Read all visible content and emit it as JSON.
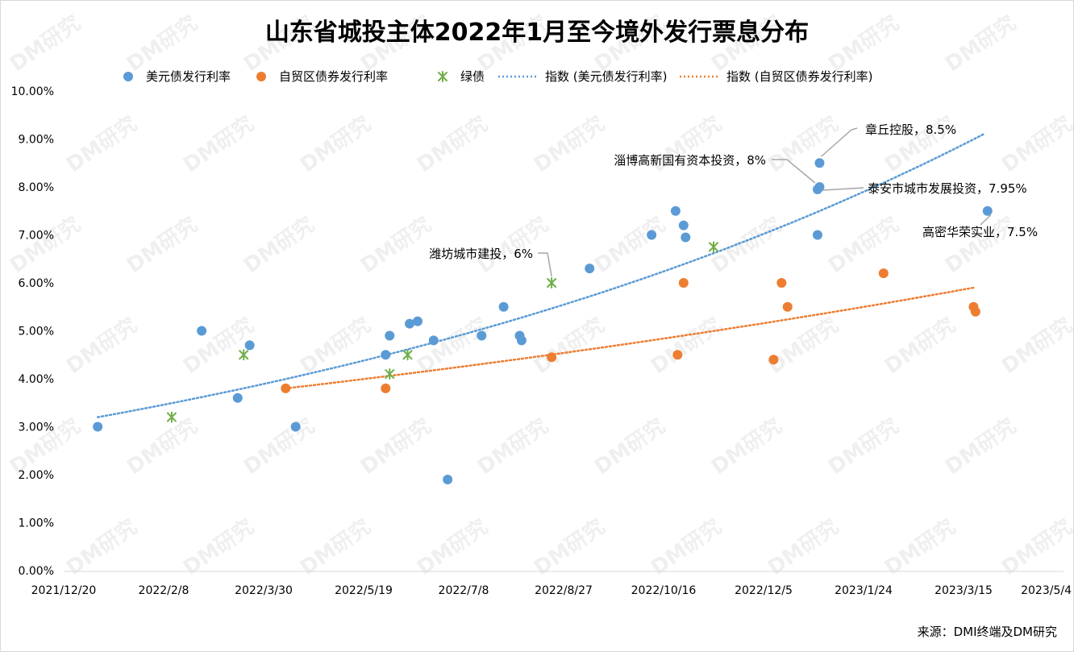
{
  "title": "山东省城投主体2022年1月至今境外发行票息分布",
  "source": "来源：DMI终端及DM研究",
  "watermark": "DM研究",
  "chart_data": {
    "type": "scatter",
    "x_axis": {
      "type": "date",
      "min": "2021-12-20",
      "max": "2023-05-04",
      "tick_labels": [
        "2021/12/20",
        "2022/2/8",
        "2022/3/30",
        "2022/5/19",
        "2022/7/8",
        "2022/8/27",
        "2022/10/16",
        "2022/12/5",
        "2023/1/24",
        "2023/3/15",
        "2023/5/4"
      ],
      "tick_dates": [
        "2021-12-20",
        "2022-02-08",
        "2022-03-30",
        "2022-05-19",
        "2022-07-08",
        "2022-08-27",
        "2022-10-16",
        "2022-12-05",
        "2023-01-24",
        "2023-03-15",
        "2023-05-04"
      ]
    },
    "y_axis": {
      "min": 0,
      "max": 0.1,
      "tick_labels": [
        "0.00%",
        "1.00%",
        "2.00%",
        "3.00%",
        "4.00%",
        "5.00%",
        "6.00%",
        "7.00%",
        "8.00%",
        "9.00%",
        "10.00%"
      ],
      "tick_values": [
        0,
        0.01,
        0.02,
        0.03,
        0.04,
        0.05,
        0.06,
        0.07,
        0.08,
        0.09,
        0.1
      ]
    },
    "legend": {
      "position": "top",
      "items": [
        {
          "label": "美元债发行利率",
          "marker": "circle",
          "color": "#5b9bd5"
        },
        {
          "label": "自贸区债券发行利率",
          "marker": "circle",
          "color": "#ed7d31"
        },
        {
          "label": "绿债",
          "marker": "asterisk",
          "color": "#70ad47"
        },
        {
          "label": "指数 (美元债发行利率)",
          "marker": "dotted-line",
          "color": "#5b9bd5"
        },
        {
          "label": "指数 (自贸区债券发行利率)",
          "marker": "dotted-line",
          "color": "#ed7d31"
        }
      ]
    },
    "series": [
      {
        "name": "美元债发行利率",
        "color": "#5b9bd5",
        "points": [
          {
            "x": "2022-01-06",
            "y": 0.03
          },
          {
            "x": "2022-02-27",
            "y": 0.05
          },
          {
            "x": "2022-03-17",
            "y": 0.036
          },
          {
            "x": "2022-03-23",
            "y": 0.047
          },
          {
            "x": "2022-04-15",
            "y": 0.03
          },
          {
            "x": "2022-05-30",
            "y": 0.045
          },
          {
            "x": "2022-06-01",
            "y": 0.049
          },
          {
            "x": "2022-06-11",
            "y": 0.0515
          },
          {
            "x": "2022-06-15",
            "y": 0.052
          },
          {
            "x": "2022-06-23",
            "y": 0.048
          },
          {
            "x": "2022-06-30",
            "y": 0.019
          },
          {
            "x": "2022-07-17",
            "y": 0.049
          },
          {
            "x": "2022-07-28",
            "y": 0.055
          },
          {
            "x": "2022-08-05",
            "y": 0.049
          },
          {
            "x": "2022-08-06",
            "y": 0.048
          },
          {
            "x": "2022-09-09",
            "y": 0.063
          },
          {
            "x": "2022-10-10",
            "y": 0.07
          },
          {
            "x": "2022-10-22",
            "y": 0.075
          },
          {
            "x": "2022-10-26",
            "y": 0.072
          },
          {
            "x": "2022-10-27",
            "y": 0.0695
          },
          {
            "x": "2023-01-01",
            "y": 0.07
          },
          {
            "x": "2023-01-01",
            "y": 0.0795
          },
          {
            "x": "2023-01-02",
            "y": 0.08
          },
          {
            "x": "2023-01-02",
            "y": 0.085
          },
          {
            "x": "2023-03-27",
            "y": 0.075
          }
        ]
      },
      {
        "name": "自贸区债券发行利率",
        "color": "#ed7d31",
        "points": [
          {
            "x": "2022-04-10",
            "y": 0.038
          },
          {
            "x": "2022-05-30",
            "y": 0.038
          },
          {
            "x": "2022-08-21",
            "y": 0.0445
          },
          {
            "x": "2022-10-23",
            "y": 0.045
          },
          {
            "x": "2022-10-26",
            "y": 0.06
          },
          {
            "x": "2022-12-10",
            "y": 0.044
          },
          {
            "x": "2022-12-14",
            "y": 0.06
          },
          {
            "x": "2022-12-17",
            "y": 0.055
          },
          {
            "x": "2023-02-03",
            "y": 0.062
          },
          {
            "x": "2023-03-20",
            "y": 0.055
          },
          {
            "x": "2023-03-21",
            "y": 0.054
          }
        ]
      },
      {
        "name": "绿债",
        "color": "#70ad47",
        "points": [
          {
            "x": "2022-02-12",
            "y": 0.032
          },
          {
            "x": "2022-03-20",
            "y": 0.045
          },
          {
            "x": "2022-06-01",
            "y": 0.041
          },
          {
            "x": "2022-06-10",
            "y": 0.045
          },
          {
            "x": "2022-08-21",
            "y": 0.06
          },
          {
            "x": "2022-11-10",
            "y": 0.0675
          }
        ]
      },
      {
        "name": "指数 (美元债发行利率)",
        "type": "exponential-trendline",
        "color": "#5b9bd5",
        "x": [
          "2022-01-06",
          "2023-03-25"
        ],
        "y_start": 0.032,
        "y_end": 0.091
      },
      {
        "name": "指数 (自贸区债券发行利率)",
        "type": "exponential-trendline",
        "color": "#ed7d31",
        "x": [
          "2022-04-10",
          "2023-03-20"
        ],
        "y_start": 0.038,
        "y_end": 0.059
      }
    ],
    "annotations": [
      {
        "text": "章丘控股，8.5%",
        "x": "2023-01-02",
        "y": 0.085
      },
      {
        "text": "淄博高新国有资本投资，8%",
        "x": "2023-01-01",
        "y": 0.08
      },
      {
        "text": "泰安市城市发展投资，7.95%",
        "x": "2023-01-01",
        "y": 0.0795
      },
      {
        "text": "高密华荣实业，7.5%",
        "x": "2023-03-27",
        "y": 0.075
      },
      {
        "text": "潍坊城市建投，6%",
        "x": "2022-08-21",
        "y": 0.06
      }
    ]
  }
}
